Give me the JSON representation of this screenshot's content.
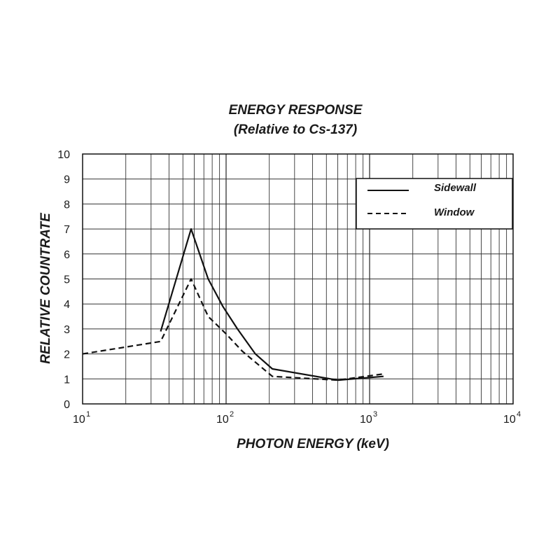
{
  "chart_data": {
    "type": "line",
    "title": "ENERGY RESPONSE",
    "subtitle": "(Relative to Cs-137)",
    "xlabel": "PHOTON ENERGY (keV)",
    "ylabel": "RELATIVE COUNTRATE",
    "x_scale": "log",
    "xlim": [
      10,
      10000
    ],
    "ylim": [
      0,
      10
    ],
    "x_ticks": [
      {
        "base": "10",
        "exp": "1"
      },
      {
        "base": "10",
        "exp": "2"
      },
      {
        "base": "10",
        "exp": "3"
      },
      {
        "base": "10",
        "exp": "4"
      }
    ],
    "y_ticks": [
      "0",
      "1",
      "2",
      "3",
      "4",
      "5",
      "6",
      "7",
      "8",
      "9",
      "10"
    ],
    "grid": true,
    "legend_position": "top-right",
    "series": [
      {
        "name": "Sidewall",
        "style": "solid",
        "x": [
          35,
          57,
          75,
          95,
          120,
          160,
          210,
          600,
          1250
        ],
        "y": [
          2.9,
          7.0,
          5.0,
          3.9,
          3.0,
          2.0,
          1.4,
          0.95,
          1.1
        ]
      },
      {
        "name": "Window",
        "style": "dashed",
        "x": [
          10,
          35,
          57,
          75,
          100,
          130,
          210,
          600,
          1250
        ],
        "y": [
          2.0,
          2.5,
          5.0,
          3.5,
          2.8,
          2.1,
          1.1,
          0.95,
          1.2
        ]
      }
    ],
    "colors": {
      "line": "#111111",
      "grid": "#333333",
      "background": "#ffffff"
    }
  }
}
